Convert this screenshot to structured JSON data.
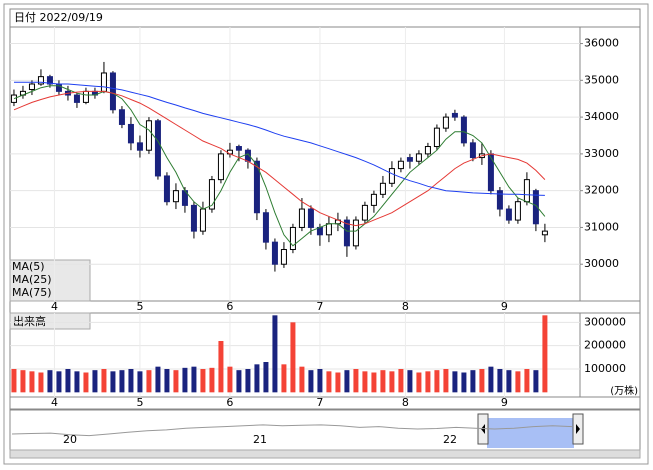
{
  "chart_data": {
    "type": "candlestick",
    "title": "日付 2022/09/19",
    "ylim": [
      29000,
      36450
    ],
    "yticks": [
      30000,
      31000,
      32000,
      33000,
      34000,
      35000,
      36000
    ],
    "xlim": [
      -0.44,
      62.9
    ],
    "xticks": [
      {
        "value": 4.5,
        "label": "4"
      },
      {
        "value": 14,
        "label": "5"
      },
      {
        "value": 24,
        "label": "6"
      },
      {
        "value": 34,
        "label": "7"
      },
      {
        "value": 43.5,
        "label": "8"
      },
      {
        "value": 54.5,
        "label": "9"
      }
    ],
    "up_color": "#ffffff",
    "down_color": "#1a237e",
    "candles": [
      [
        34400,
        34750,
        34300,
        34600
      ],
      [
        34600,
        34850,
        34500,
        34700
      ],
      [
        34750,
        35000,
        34600,
        34900
      ],
      [
        34900,
        35300,
        34850,
        35100
      ],
      [
        35100,
        35150,
        34800,
        34900
      ],
      [
        34900,
        35000,
        34600,
        34700
      ],
      [
        34700,
        34850,
        34450,
        34600
      ],
      [
        34600,
        34650,
        34250,
        34400
      ],
      [
        34400,
        34800,
        34350,
        34700
      ],
      [
        34700,
        34800,
        34500,
        34600
      ],
      [
        34700,
        35500,
        34650,
        35200
      ],
      [
        35200,
        35250,
        34100,
        34200
      ],
      [
        34200,
        34300,
        33700,
        33800
      ],
      [
        33800,
        34000,
        33100,
        33300
      ],
      [
        33300,
        33500,
        32900,
        33100
      ],
      [
        33100,
        34000,
        33000,
        33900
      ],
      [
        33900,
        33950,
        32300,
        32400
      ],
      [
        32400,
        32500,
        31600,
        31700
      ],
      [
        31700,
        32200,
        31500,
        32000
      ],
      [
        32000,
        32100,
        31400,
        31600
      ],
      [
        31600,
        31700,
        30700,
        30900
      ],
      [
        30900,
        31700,
        30800,
        31500
      ],
      [
        31500,
        32400,
        31400,
        32300
      ],
      [
        32300,
        33100,
        32200,
        33000
      ],
      [
        33000,
        33300,
        32900,
        33100
      ],
      [
        33200,
        33250,
        32800,
        33100
      ],
      [
        33100,
        33150,
        32600,
        32800
      ],
      [
        32800,
        32900,
        31200,
        31400
      ],
      [
        31400,
        31500,
        30400,
        30600
      ],
      [
        30600,
        30700,
        29800,
        30000
      ],
      [
        30000,
        30600,
        29900,
        30400
      ],
      [
        30400,
        31100,
        30300,
        31000
      ],
      [
        31000,
        31800,
        30900,
        31500
      ],
      [
        31500,
        31600,
        30800,
        31000
      ],
      [
        31000,
        31100,
        30500,
        30800
      ],
      [
        30800,
        31300,
        30600,
        31100
      ],
      [
        31100,
        31400,
        30900,
        31200
      ],
      [
        31200,
        31300,
        30200,
        30500
      ],
      [
        30500,
        31300,
        30400,
        31200
      ],
      [
        31200,
        31700,
        31100,
        31600
      ],
      [
        31600,
        32000,
        31400,
        31900
      ],
      [
        31900,
        32400,
        31800,
        32200
      ],
      [
        32200,
        32800,
        32100,
        32600
      ],
      [
        32600,
        32900,
        32500,
        32800
      ],
      [
        32900,
        33000,
        32600,
        32800
      ],
      [
        32800,
        33100,
        32700,
        33000
      ],
      [
        33000,
        33300,
        32900,
        33200
      ],
      [
        33200,
        33800,
        33100,
        33700
      ],
      [
        33700,
        34100,
        33600,
        34000
      ],
      [
        34100,
        34200,
        33900,
        34000
      ],
      [
        34000,
        34050,
        33200,
        33300
      ],
      [
        33300,
        33400,
        32800,
        32900
      ],
      [
        32900,
        33300,
        32700,
        33000
      ],
      [
        33000,
        33100,
        31900,
        32000
      ],
      [
        32000,
        32100,
        31300,
        31500
      ],
      [
        31500,
        31600,
        31100,
        31200
      ],
      [
        31200,
        31800,
        31100,
        31700
      ],
      [
        31700,
        32500,
        31600,
        32300
      ],
      [
        32000,
        32050,
        30900,
        31100
      ],
      [
        30800,
        31100,
        30600,
        30900
      ]
    ],
    "series": [
      {
        "name": "MA(5)",
        "color": "#2e7d32",
        "values": [
          34500,
          34600,
          34700,
          34800,
          34850,
          34850,
          34750,
          34650,
          34600,
          34600,
          34700,
          34650,
          34500,
          34200,
          33800,
          33650,
          33350,
          32900,
          32500,
          32000,
          31700,
          31500,
          31600,
          32000,
          32500,
          32900,
          33000,
          32700,
          32100,
          31400,
          30800,
          30500,
          30700,
          30900,
          31000,
          31100,
          31100,
          30900,
          30900,
          31100,
          31300,
          31600,
          31900,
          32200,
          32500,
          32700,
          32900,
          33100,
          33400,
          33600,
          33600,
          33500,
          33300,
          32900,
          32500,
          32100,
          31800,
          31700,
          31600,
          31300
        ]
      },
      {
        "name": "MA(25)",
        "color": "#e53935",
        "values": [
          34200,
          34300,
          34400,
          34480,
          34550,
          34600,
          34650,
          34680,
          34700,
          34700,
          34700,
          34650,
          34580,
          34480,
          34380,
          34250,
          34100,
          33950,
          33800,
          33650,
          33500,
          33350,
          33250,
          33150,
          33000,
          32900,
          32800,
          32650,
          32500,
          32300,
          32100,
          31900,
          31700,
          31550,
          31400,
          31300,
          31200,
          31100,
          31050,
          31100,
          31200,
          31300,
          31400,
          31550,
          31700,
          31850,
          32000,
          32200,
          32400,
          32600,
          32750,
          32850,
          32950,
          33000,
          32950,
          32900,
          32850,
          32750,
          32550,
          32300
        ]
      },
      {
        "name": "MA(75)",
        "color": "#1e3ff0",
        "values": [
          34950,
          34950,
          34950,
          34950,
          34920,
          34900,
          34900,
          34880,
          34860,
          34840,
          34820,
          34780,
          34740,
          34680,
          34620,
          34560,
          34480,
          34400,
          34330,
          34250,
          34180,
          34100,
          34040,
          33980,
          33920,
          33860,
          33800,
          33730,
          33650,
          33560,
          33480,
          33420,
          33360,
          33300,
          33220,
          33140,
          33060,
          32980,
          32900,
          32800,
          32700,
          32580,
          32460,
          32360,
          32270,
          32200,
          32120,
          32060,
          32000,
          31980,
          31960,
          31940,
          31930,
          31920,
          31910,
          31900,
          31900,
          31890,
          31880,
          31870
        ]
      }
    ],
    "volume": {
      "title": "出来高",
      "unit": "(万株)",
      "ylim": [
        -20000,
        340000
      ],
      "yticks": [
        100000,
        200000,
        300000
      ],
      "up_color": "#f44336",
      "down_color": "#1a237e",
      "values": [
        100000,
        95000,
        90000,
        85000,
        95000,
        90000,
        100000,
        90000,
        85000,
        95000,
        100000,
        90000,
        95000,
        100000,
        90000,
        95000,
        110000,
        100000,
        95000,
        105000,
        110000,
        100000,
        105000,
        220000,
        110000,
        95000,
        100000,
        120000,
        130000,
        330000,
        120000,
        300000,
        110000,
        95000,
        100000,
        90000,
        85000,
        95000,
        100000,
        90000,
        85000,
        95000,
        90000,
        100000,
        95000,
        85000,
        90000,
        95000,
        100000,
        90000,
        85000,
        95000,
        100000,
        110000,
        100000,
        95000,
        90000,
        100000,
        95000,
        330000
      ]
    },
    "navigator": {
      "labels": [
        "20",
        "21",
        "22"
      ],
      "ylim": [
        15000,
        35000
      ],
      "color": "#999999",
      "values": [
        23500,
        23800,
        24000,
        23000,
        22500,
        23500,
        24500,
        25500,
        26000,
        27000,
        27500,
        28000,
        28500,
        29000,
        28500,
        28800,
        29000,
        28500,
        27500,
        28000,
        27000,
        26500,
        26800,
        27500,
        27000,
        26500,
        27000,
        28000,
        28500,
        28000
      ]
    }
  }
}
